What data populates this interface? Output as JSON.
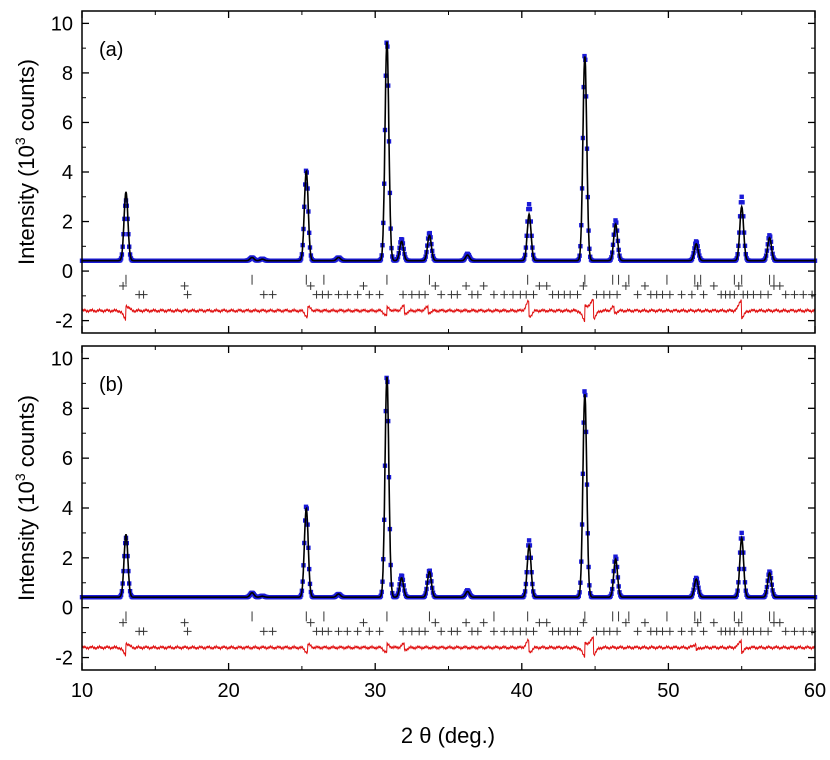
{
  "figure": {
    "xlabel": "2 θ (deg.)",
    "x_ticks": [
      "10",
      "20",
      "30",
      "40",
      "50",
      "60"
    ],
    "y_ticks": [
      "-2",
      "0",
      "2",
      "4",
      "6",
      "8",
      "10"
    ],
    "colors": {
      "observed": "#1a1ad8",
      "calculated": "#000000",
      "difference": "#e01010",
      "ticks": "#333333"
    }
  },
  "chart_data": [
    {
      "type": "line",
      "panel_label": "(a)",
      "ylabel": "Intensity (10³ counts)",
      "xlim": [
        10,
        60
      ],
      "ylim": [
        -2.5,
        10.5
      ],
      "background": 0.42,
      "difference_offset": -1.6,
      "series": [
        {
          "name": "",
          "role": "observed",
          "style": "squares"
        },
        {
          "name": "",
          "role": "calculated",
          "style": "line"
        },
        {
          "name": "",
          "role": "difference",
          "style": "line"
        }
      ],
      "peaks": [
        {
          "x": 13.0,
          "obs": 2.85,
          "calc": 3.2
        },
        {
          "x": 21.6,
          "obs": 0.55,
          "calc": 0.55
        },
        {
          "x": 22.3,
          "obs": 0.5,
          "calc": 0.48
        },
        {
          "x": 25.3,
          "obs": 4.1,
          "calc": 4.05
        },
        {
          "x": 27.5,
          "obs": 0.55,
          "calc": 0.55
        },
        {
          "x": 30.8,
          "obs": 9.35,
          "calc": 9.3
        },
        {
          "x": 31.8,
          "obs": 1.3,
          "calc": 1.2
        },
        {
          "x": 33.7,
          "obs": 1.55,
          "calc": 1.45
        },
        {
          "x": 36.3,
          "obs": 0.7,
          "calc": 0.65
        },
        {
          "x": 40.5,
          "obs": 2.7,
          "calc": 2.3
        },
        {
          "x": 44.3,
          "obs": 8.8,
          "calc": 8.7
        },
        {
          "x": 46.4,
          "obs": 2.05,
          "calc": 1.9
        },
        {
          "x": 51.9,
          "obs": 1.2,
          "calc": 1.1
        },
        {
          "x": 55.0,
          "obs": 3.0,
          "calc": 2.6
        },
        {
          "x": 56.9,
          "obs": 1.45,
          "calc": 1.35
        }
      ],
      "phase1_ticks": [
        13.0,
        21.6,
        25.3,
        26.5,
        30.8,
        33.7,
        40.4,
        44.3,
        46.2,
        46.6,
        47.3,
        49.9,
        51.8,
        52.2,
        54.5,
        55.0,
        56.9,
        57.2
      ],
      "phase2_ticks": [
        12.8,
        13.9,
        14.2,
        17.0,
        17.2,
        22.4,
        23.0,
        25.6,
        26.0,
        26.4,
        26.8,
        27.5,
        28.1,
        28.8,
        29.2,
        29.6,
        30.3,
        31.9,
        32.5,
        33.0,
        33.4,
        34.1,
        34.5,
        35.2,
        35.6,
        36.2,
        36.6,
        37.0,
        37.4,
        38.1,
        38.8,
        39.4,
        39.9,
        40.3,
        40.8,
        41.2,
        41.7,
        42.1,
        42.5,
        42.9,
        43.3,
        43.8,
        44.2,
        45.1,
        45.6,
        46.0,
        46.5,
        47.1,
        47.9,
        48.4,
        48.8,
        49.2,
        49.6,
        50.1,
        50.9,
        51.6,
        52.0,
        52.4,
        53.1,
        53.6,
        53.9,
        54.2,
        54.5,
        54.8,
        55.1,
        55.4,
        55.8,
        56.3,
        56.8,
        57.2,
        57.6,
        58.0,
        58.6,
        59.2,
        59.8
      ],
      "difference_features": [
        {
          "x": 13.0,
          "amp": -0.35
        },
        {
          "x": 25.4,
          "amp": -0.25
        },
        {
          "x": 30.8,
          "amp": -0.2
        },
        {
          "x": 32.0,
          "amp": 0.2
        },
        {
          "x": 33.6,
          "amp": 0.15
        },
        {
          "x": 40.5,
          "amp": 0.4
        },
        {
          "x": 44.3,
          "amp": -0.4
        },
        {
          "x": 44.9,
          "amp": 0.5
        },
        {
          "x": 46.3,
          "amp": 0.15
        },
        {
          "x": 55.0,
          "amp": 0.45
        }
      ]
    },
    {
      "type": "line",
      "panel_label": "(b)",
      "ylabel": "Intensity (10³ counts)",
      "xlim": [
        10,
        60
      ],
      "ylim": [
        -2.5,
        10.5
      ],
      "background": 0.42,
      "difference_offset": -1.6,
      "series": [
        {
          "name": "",
          "role": "observed",
          "style": "squares"
        },
        {
          "name": "",
          "role": "calculated",
          "style": "line"
        },
        {
          "name": "",
          "role": "difference",
          "style": "line"
        }
      ],
      "peaks": [
        {
          "x": 13.0,
          "obs": 2.8,
          "calc": 2.95
        },
        {
          "x": 21.6,
          "obs": 0.6,
          "calc": 0.6
        },
        {
          "x": 22.3,
          "obs": 0.48,
          "calc": 0.46
        },
        {
          "x": 25.3,
          "obs": 4.1,
          "calc": 4.0
        },
        {
          "x": 27.5,
          "obs": 0.55,
          "calc": 0.55
        },
        {
          "x": 30.8,
          "obs": 9.35,
          "calc": 9.3
        },
        {
          "x": 31.8,
          "obs": 1.3,
          "calc": 1.2
        },
        {
          "x": 33.7,
          "obs": 1.5,
          "calc": 1.45
        },
        {
          "x": 36.3,
          "obs": 0.7,
          "calc": 0.65
        },
        {
          "x": 40.5,
          "obs": 2.7,
          "calc": 2.5
        },
        {
          "x": 44.3,
          "obs": 8.8,
          "calc": 8.6
        },
        {
          "x": 46.4,
          "obs": 2.05,
          "calc": 1.95
        },
        {
          "x": 51.9,
          "obs": 1.2,
          "calc": 1.15
        },
        {
          "x": 55.0,
          "obs": 3.0,
          "calc": 2.8
        },
        {
          "x": 56.9,
          "obs": 1.45,
          "calc": 1.4
        }
      ],
      "phase1_ticks": [
        13.0,
        21.6,
        25.3,
        26.5,
        30.8,
        33.7,
        38.1,
        40.4,
        44.3,
        46.2,
        46.6,
        47.3,
        49.9,
        51.8,
        52.2,
        54.5,
        55.0,
        56.9,
        57.2
      ],
      "phase2_ticks": [
        12.8,
        13.9,
        14.2,
        17.0,
        17.2,
        22.4,
        23.0,
        25.6,
        26.0,
        26.4,
        26.8,
        27.5,
        28.1,
        28.8,
        29.2,
        29.6,
        30.3,
        31.9,
        32.5,
        33.0,
        33.4,
        34.1,
        34.5,
        35.2,
        35.6,
        36.2,
        36.6,
        37.0,
        37.4,
        38.1,
        38.8,
        39.4,
        39.9,
        40.3,
        40.8,
        41.2,
        41.7,
        42.1,
        42.5,
        42.9,
        43.3,
        43.8,
        44.2,
        45.1,
        45.6,
        46.0,
        46.5,
        47.1,
        47.9,
        48.4,
        48.8,
        49.2,
        49.6,
        50.1,
        50.9,
        51.6,
        52.0,
        52.4,
        53.1,
        53.6,
        53.9,
        54.2,
        54.5,
        54.8,
        55.1,
        55.4,
        55.8,
        56.3,
        56.8,
        57.2,
        57.6,
        58.0,
        58.6,
        59.2,
        59.8
      ],
      "difference_features": [
        {
          "x": 13.0,
          "amp": -0.3
        },
        {
          "x": 25.4,
          "amp": -0.2
        },
        {
          "x": 30.8,
          "amp": -0.2
        },
        {
          "x": 32.0,
          "amp": 0.15
        },
        {
          "x": 40.5,
          "amp": 0.3
        },
        {
          "x": 44.3,
          "amp": -0.35
        },
        {
          "x": 44.9,
          "amp": 0.45
        },
        {
          "x": 51.9,
          "amp": 0.15
        },
        {
          "x": 55.0,
          "amp": 0.3
        }
      ]
    }
  ]
}
